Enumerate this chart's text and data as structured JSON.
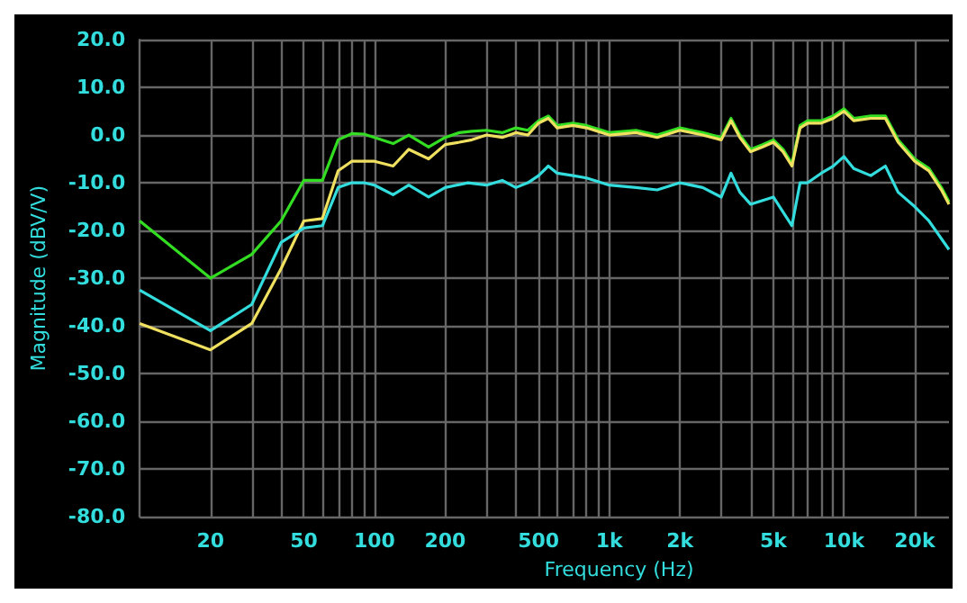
{
  "chart_data": {
    "type": "line",
    "xlabel": "Frequency (Hz)",
    "ylabel": "Magnitude (dBV/V)",
    "log": "x",
    "grid": true,
    "marker": "none",
    "line_style": "solid",
    "xlim": [
      10,
      28000
    ],
    "xticks": [
      {
        "value": 10,
        "label": null
      },
      {
        "value": 20,
        "label": "20"
      },
      {
        "value": 30,
        "label": null
      },
      {
        "value": 40,
        "label": null
      },
      {
        "value": 50,
        "label": "50"
      },
      {
        "value": 60,
        "label": null
      },
      {
        "value": 70,
        "label": null
      },
      {
        "value": 80,
        "label": null
      },
      {
        "value": 90,
        "label": null
      },
      {
        "value": 100,
        "label": "100"
      },
      {
        "value": 200,
        "label": "200"
      },
      {
        "value": 300,
        "label": null
      },
      {
        "value": 400,
        "label": null
      },
      {
        "value": 500,
        "label": "500"
      },
      {
        "value": 600,
        "label": null
      },
      {
        "value": 700,
        "label": null
      },
      {
        "value": 800,
        "label": null
      },
      {
        "value": 900,
        "label": null
      },
      {
        "value": 1000,
        "label": "1k"
      },
      {
        "value": 2000,
        "label": "2k"
      },
      {
        "value": 3000,
        "label": null
      },
      {
        "value": 4000,
        "label": null
      },
      {
        "value": 5000,
        "label": "5k"
      },
      {
        "value": 6000,
        "label": null
      },
      {
        "value": 7000,
        "label": null
      },
      {
        "value": 8000,
        "label": null
      },
      {
        "value": 9000,
        "label": null
      },
      {
        "value": 10000,
        "label": "10k"
      },
      {
        "value": 20000,
        "label": "20k"
      }
    ],
    "ylim": [
      -80,
      20
    ],
    "yticks": [
      {
        "value": -80,
        "label": "-80.0"
      },
      {
        "value": -70,
        "label": "-70.0"
      },
      {
        "value": -60,
        "label": "-60.0"
      },
      {
        "value": -50,
        "label": "-50.0"
      },
      {
        "value": -40,
        "label": "-40.0"
      },
      {
        "value": -30,
        "label": "-30.0"
      },
      {
        "value": -20,
        "label": "-20.0"
      },
      {
        "value": -10,
        "label": "-10.0"
      },
      {
        "value": 0,
        "label": "0.0"
      },
      {
        "value": 10,
        "label": "10.0"
      },
      {
        "value": 20,
        "label": "20.0"
      }
    ],
    "series": [
      {
        "color": "#33dd22",
        "x": [
          10,
          20,
          30,
          40,
          50,
          60,
          70,
          80,
          90,
          100,
          120,
          140,
          170,
          200,
          230,
          260,
          300,
          350,
          400,
          450,
          500,
          550,
          600,
          700,
          800,
          1000,
          1300,
          1600,
          2000,
          2500,
          3000,
          3300,
          3600,
          4000,
          4500,
          5000,
          5500,
          6000,
          6500,
          7000,
          8000,
          9000,
          10000,
          11000,
          13000,
          15000,
          17000,
          20000,
          23000,
          26000,
          28000
        ],
        "values": [
          -18,
          -30,
          -25,
          -18,
          -9.5,
          -9.5,
          -1,
          0.3,
          0.2,
          -0.5,
          -1.8,
          0,
          -2.5,
          -0.5,
          0.5,
          0.8,
          1,
          0.5,
          1.5,
          1,
          3,
          4,
          2,
          2.5,
          2,
          0.5,
          1,
          0,
          1.5,
          0.5,
          -0.5,
          3.5,
          0,
          -3,
          -2,
          -1,
          -3,
          -6,
          2,
          3,
          3,
          4,
          5.5,
          3.5,
          4,
          4,
          -1,
          -5,
          -7,
          -11,
          -14
        ]
      },
      {
        "color": "#f0e060",
        "x": [
          10,
          20,
          30,
          40,
          50,
          60,
          70,
          80,
          90,
          100,
          120,
          140,
          170,
          200,
          230,
          260,
          300,
          350,
          400,
          450,
          500,
          550,
          600,
          700,
          800,
          1000,
          1300,
          1600,
          2000,
          2500,
          3000,
          3300,
          3600,
          4000,
          4500,
          5000,
          5500,
          6000,
          6500,
          7000,
          8000,
          9000,
          10000,
          11000,
          13000,
          15000,
          17000,
          20000,
          23000,
          26000,
          28000
        ],
        "values": [
          -39.5,
          -45,
          -39.5,
          -28,
          -18,
          -17.5,
          -7.5,
          -5.5,
          -5.5,
          -5.5,
          -6.5,
          -3,
          -5,
          -2,
          -1.5,
          -1,
          0,
          -0.5,
          0.5,
          0,
          2.5,
          3.5,
          1.5,
          2,
          1.5,
          0,
          0.5,
          -0.5,
          1,
          0,
          -1,
          3,
          -0.5,
          -3.5,
          -2.5,
          -1.5,
          -3.5,
          -6.5,
          1.5,
          2.5,
          2.5,
          3.5,
          5,
          3,
          3.5,
          3.5,
          -1.5,
          -5.5,
          -7.5,
          -11.5,
          -14.5
        ]
      },
      {
        "color": "#33dddd",
        "x": [
          10,
          20,
          30,
          40,
          50,
          60,
          70,
          80,
          90,
          100,
          120,
          140,
          170,
          200,
          250,
          300,
          350,
          400,
          450,
          500,
          550,
          600,
          700,
          800,
          1000,
          1300,
          1600,
          2000,
          2500,
          3000,
          3300,
          3600,
          4000,
          5000,
          6000,
          6500,
          7000,
          8000,
          9000,
          10000,
          11000,
          13000,
          15000,
          17000,
          20000,
          23000,
          28000
        ],
        "values": [
          -32.5,
          -41,
          -35.5,
          -22.5,
          -19.5,
          -19,
          -11,
          -10,
          -10,
          -10.5,
          -12.5,
          -10.5,
          -13,
          -11,
          -10,
          -10.5,
          -9.5,
          -11,
          -10,
          -8.5,
          -6.5,
          -8,
          -8.5,
          -9,
          -10.5,
          -11,
          -11.5,
          -10,
          -11,
          -13,
          -8,
          -12,
          -14.5,
          -13,
          -19,
          -10,
          -10,
          -8,
          -6.5,
          -4.5,
          -7,
          -8.5,
          -6.5,
          -12,
          -15,
          -18,
          -24
        ]
      }
    ]
  }
}
